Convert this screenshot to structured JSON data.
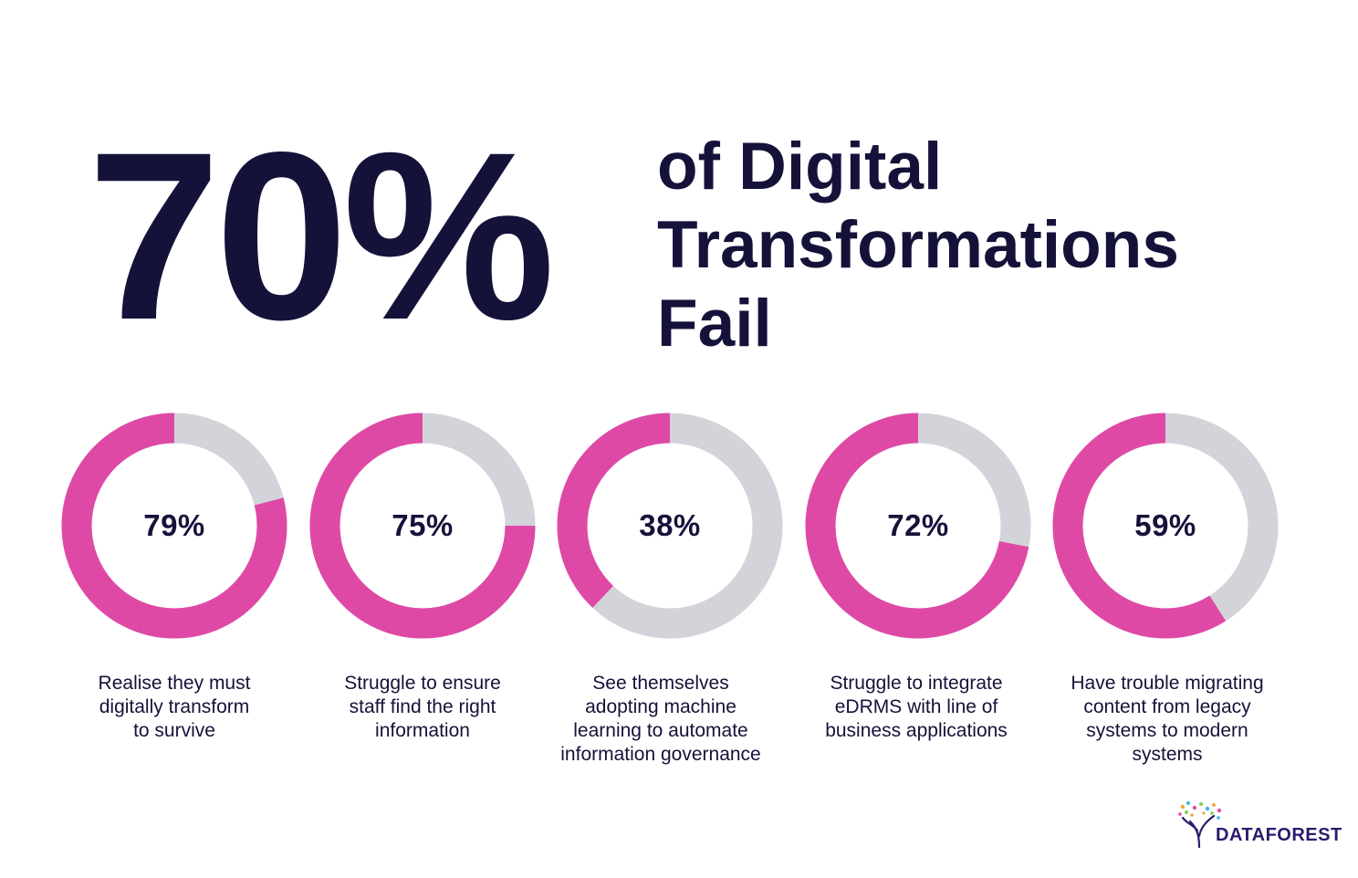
{
  "headline": {
    "big_number": "70%",
    "caption_lines": [
      "of Digital",
      "Transformations",
      "Fail"
    ]
  },
  "colors": {
    "accent": "#df49a6",
    "track": "#d3d3da",
    "text": "#15123a"
  },
  "chart_data": {
    "type": "donut",
    "items": [
      {
        "label": "79%",
        "value": 79,
        "caption": [
          "Realise they must",
          "digitally transform",
          "to survive"
        ]
      },
      {
        "label": "75%",
        "value": 75,
        "caption": [
          "Struggle to ensure",
          "staff find the right",
          "information"
        ]
      },
      {
        "label": "38%",
        "value": 38,
        "caption": [
          "See themselves",
          "adopting machine",
          "learning to automate",
          "information governance"
        ]
      },
      {
        "label": "72%",
        "value": 72,
        "caption": [
          "Struggle to integrate",
          "eDRMS with line of",
          "business applications"
        ]
      },
      {
        "label": "59%",
        "value": 59,
        "caption": [
          "Have trouble migrating",
          "content from legacy",
          "systems to modern",
          "systems"
        ]
      }
    ]
  },
  "logo": {
    "text": "DATAFOREST"
  }
}
